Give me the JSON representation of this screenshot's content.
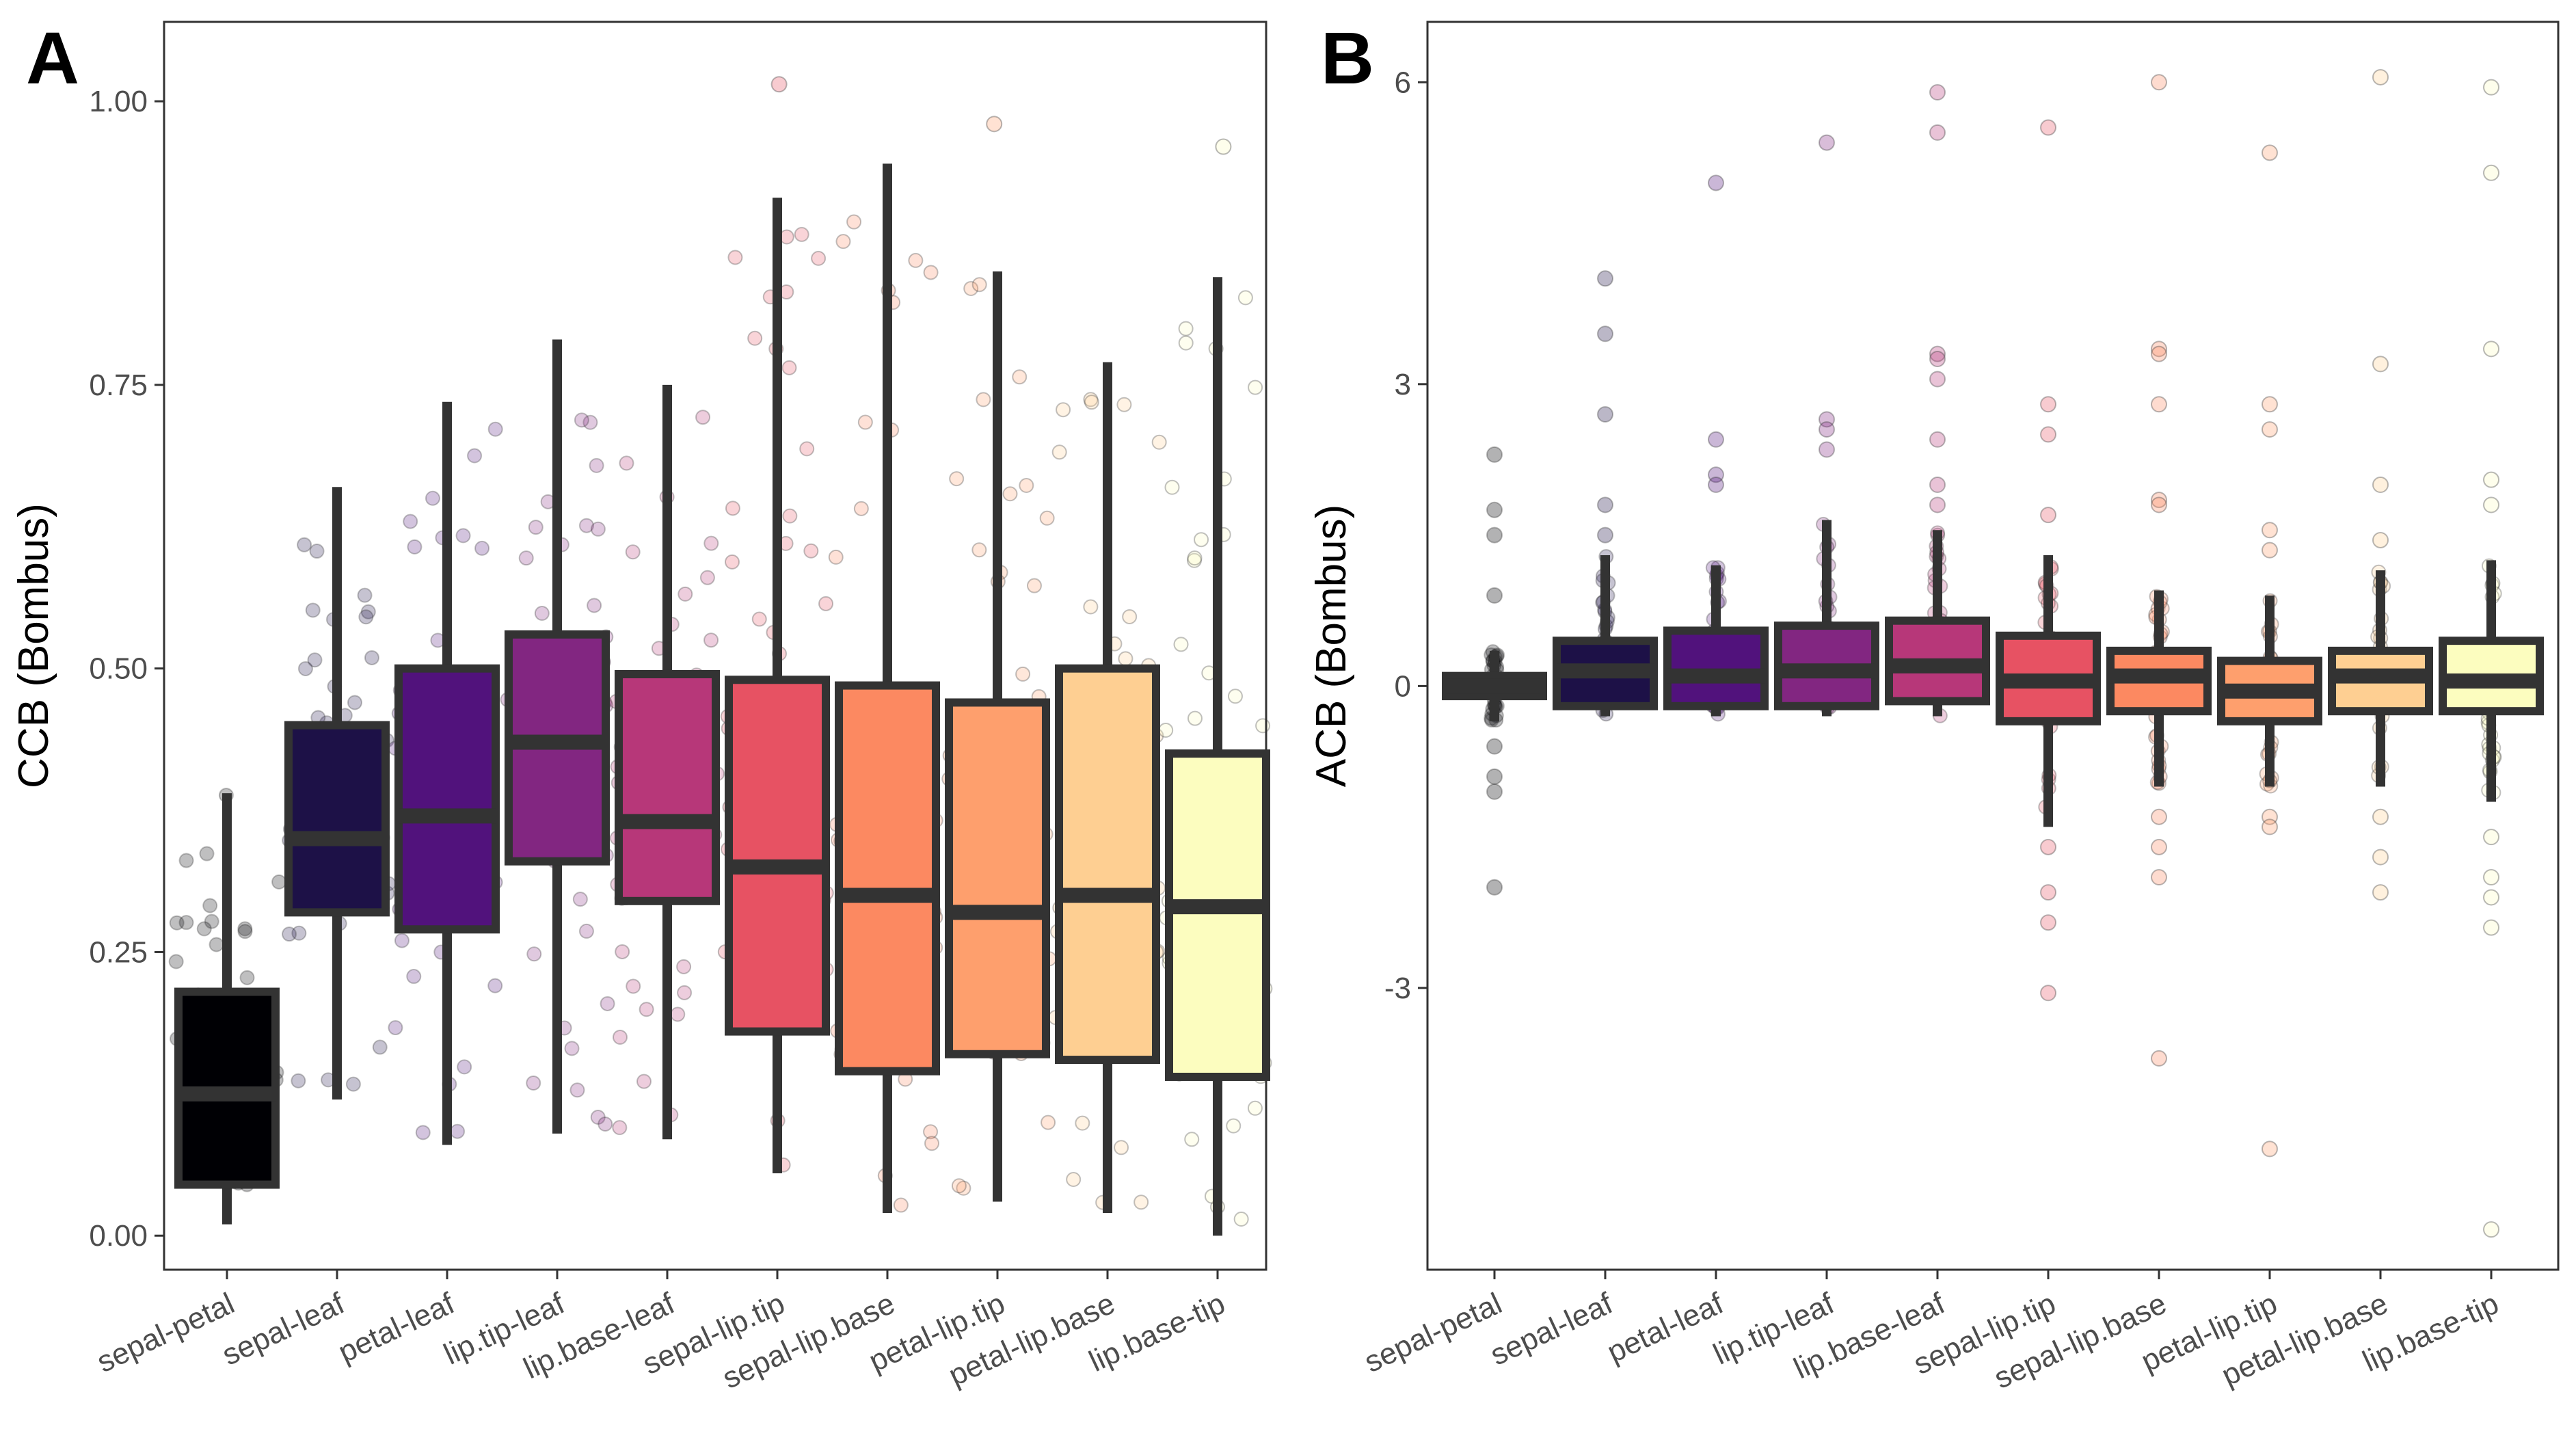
{
  "chart_data": [
    {
      "panel": "A",
      "type": "boxplot",
      "ylabel": "CCB (Bombus)",
      "xlabel": "",
      "ylim": [
        -0.03,
        1.07
      ],
      "yticks": [
        0.0,
        0.25,
        0.5,
        0.75,
        1.0
      ],
      "ytick_labels": [
        "0.00",
        "0.25",
        "0.50",
        "0.75",
        "1.00"
      ],
      "grid": false,
      "categories": [
        "sepal-petal",
        "sepal-leaf",
        "petal-leaf",
        "lip.tip-leaf",
        "lip.base-leaf",
        "sepal-lip.tip",
        "sepal-lip.base",
        "petal-lip.tip",
        "petal-lip.base",
        "lip.base-tip"
      ],
      "boxes": [
        {
          "category": "sepal-petal",
          "whisker_low": 0.01,
          "q1": 0.045,
          "median": 0.125,
          "q3": 0.215,
          "whisker_high": 0.39
        },
        {
          "category": "sepal-leaf",
          "whisker_low": 0.12,
          "q1": 0.285,
          "median": 0.35,
          "q3": 0.45,
          "whisker_high": 0.66
        },
        {
          "category": "petal-leaf",
          "whisker_low": 0.08,
          "q1": 0.27,
          "median": 0.37,
          "q3": 0.5,
          "whisker_high": 0.735
        },
        {
          "category": "lip.tip-leaf",
          "whisker_low": 0.09,
          "q1": 0.33,
          "median": 0.435,
          "q3": 0.53,
          "whisker_high": 0.79
        },
        {
          "category": "lip.base-leaf",
          "whisker_low": 0.085,
          "q1": 0.295,
          "median": 0.365,
          "q3": 0.495,
          "whisker_high": 0.75
        },
        {
          "category": "sepal-lip.tip",
          "whisker_low": 0.055,
          "q1": 0.18,
          "median": 0.325,
          "q3": 0.49,
          "whisker_high": 0.915
        },
        {
          "category": "sepal-lip.base",
          "whisker_low": 0.02,
          "q1": 0.145,
          "median": 0.3,
          "q3": 0.485,
          "whisker_high": 0.945
        },
        {
          "category": "petal-lip.tip",
          "whisker_low": 0.03,
          "q1": 0.16,
          "median": 0.285,
          "q3": 0.47,
          "whisker_high": 0.85
        },
        {
          "category": "petal-lip.base",
          "whisker_low": 0.02,
          "q1": 0.155,
          "median": 0.3,
          "q3": 0.5,
          "whisker_high": 0.77
        },
        {
          "category": "lip.base-tip",
          "whisker_low": 0.0,
          "q1": 0.14,
          "median": 0.29,
          "q3": 0.425,
          "whisker_high": 0.845
        }
      ],
      "outliers": [
        {
          "category": "sepal-lip.tip",
          "value": 1.015
        },
        {
          "category": "petal-lip.tip",
          "value": 0.98
        },
        {
          "category": "lip.base-tip",
          "value": 0.96
        }
      ],
      "fill_colors": [
        "#000004",
        "#1d1147",
        "#51127c",
        "#822681",
        "#b73779",
        "#e75263",
        "#fc8961",
        "#fe9f6d",
        "#fecf92",
        "#fcfdbf"
      ]
    },
    {
      "panel": "B",
      "type": "boxplot",
      "ylabel": "ACB (Bombus)",
      "xlabel": "",
      "ylim": [
        -5.8,
        6.6
      ],
      "yticks": [
        -3,
        0,
        3,
        6
      ],
      "ytick_labels": [
        "-3",
        "0",
        "3",
        "6"
      ],
      "grid": false,
      "categories": [
        "sepal-petal",
        "sepal-leaf",
        "petal-leaf",
        "lip.tip-leaf",
        "lip.base-leaf",
        "sepal-lip.tip",
        "sepal-lip.base",
        "petal-lip.tip",
        "petal-lip.base",
        "lip.base-tip"
      ],
      "boxes": [
        {
          "category": "sepal-petal",
          "whisker_low": -0.35,
          "q1": -0.1,
          "median": 0.0,
          "q3": 0.1,
          "whisker_high": 0.35
        },
        {
          "category": "sepal-leaf",
          "whisker_low": -0.3,
          "q1": -0.2,
          "median": 0.15,
          "q3": 0.45,
          "whisker_high": 1.3
        },
        {
          "category": "petal-leaf",
          "whisker_low": -0.3,
          "q1": -0.2,
          "median": 0.1,
          "q3": 0.55,
          "whisker_high": 1.2
        },
        {
          "category": "lip.tip-leaf",
          "whisker_low": -0.3,
          "q1": -0.2,
          "median": 0.15,
          "q3": 0.6,
          "whisker_high": 1.65
        },
        {
          "category": "lip.base-leaf",
          "whisker_low": -0.3,
          "q1": -0.15,
          "median": 0.2,
          "q3": 0.65,
          "whisker_high": 1.55
        },
        {
          "category": "sepal-lip.tip",
          "whisker_low": -1.4,
          "q1": -0.35,
          "median": 0.05,
          "q3": 0.5,
          "whisker_high": 1.3
        },
        {
          "category": "sepal-lip.base",
          "whisker_low": -1.0,
          "q1": -0.25,
          "median": 0.1,
          "q3": 0.35,
          "whisker_high": 0.95
        },
        {
          "category": "petal-lip.tip",
          "whisker_low": -1.0,
          "q1": -0.35,
          "median": -0.05,
          "q3": 0.25,
          "whisker_high": 0.9
        },
        {
          "category": "petal-lip.base",
          "whisker_low": -1.0,
          "q1": -0.25,
          "median": 0.1,
          "q3": 0.35,
          "whisker_high": 1.15
        },
        {
          "category": "lip.base-tip",
          "whisker_low": -1.15,
          "q1": -0.25,
          "median": 0.05,
          "q3": 0.45,
          "whisker_high": 1.25
        }
      ],
      "outliers": [
        {
          "category": "sepal-petal",
          "value": 2.3
        },
        {
          "category": "sepal-petal",
          "value": 1.75
        },
        {
          "category": "sepal-petal",
          "value": 1.5
        },
        {
          "category": "sepal-petal",
          "value": 0.9
        },
        {
          "category": "sepal-petal",
          "value": -0.6
        },
        {
          "category": "sepal-petal",
          "value": -0.9
        },
        {
          "category": "sepal-petal",
          "value": -1.05
        },
        {
          "category": "sepal-petal",
          "value": -2.0
        },
        {
          "category": "sepal-leaf",
          "value": 4.05
        },
        {
          "category": "sepal-leaf",
          "value": 3.5
        },
        {
          "category": "sepal-leaf",
          "value": 2.7
        },
        {
          "category": "sepal-leaf",
          "value": 1.8
        },
        {
          "category": "sepal-leaf",
          "value": 1.5
        },
        {
          "category": "petal-leaf",
          "value": 5.0
        },
        {
          "category": "petal-leaf",
          "value": 2.45
        },
        {
          "category": "petal-leaf",
          "value": 2.1
        },
        {
          "category": "petal-leaf",
          "value": 2.0
        },
        {
          "category": "lip.tip-leaf",
          "value": 5.4
        },
        {
          "category": "lip.tip-leaf",
          "value": 2.65
        },
        {
          "category": "lip.tip-leaf",
          "value": 2.55
        },
        {
          "category": "lip.tip-leaf",
          "value": 2.35
        },
        {
          "category": "lip.base-leaf",
          "value": 5.9
        },
        {
          "category": "lip.base-leaf",
          "value": 5.5
        },
        {
          "category": "lip.base-leaf",
          "value": 3.3
        },
        {
          "category": "lip.base-leaf",
          "value": 3.25
        },
        {
          "category": "lip.base-leaf",
          "value": 3.05
        },
        {
          "category": "lip.base-leaf",
          "value": 2.45
        },
        {
          "category": "lip.base-leaf",
          "value": 2.0
        },
        {
          "category": "lip.base-leaf",
          "value": 1.8
        },
        {
          "category": "sepal-lip.tip",
          "value": 5.55
        },
        {
          "category": "sepal-lip.tip",
          "value": 2.8
        },
        {
          "category": "sepal-lip.tip",
          "value": 2.5
        },
        {
          "category": "sepal-lip.tip",
          "value": 1.7
        },
        {
          "category": "sepal-lip.tip",
          "value": -1.6
        },
        {
          "category": "sepal-lip.tip",
          "value": -2.05
        },
        {
          "category": "sepal-lip.tip",
          "value": -2.35
        },
        {
          "category": "sepal-lip.tip",
          "value": -3.05
        },
        {
          "category": "sepal-lip.base",
          "value": 6.0
        },
        {
          "category": "sepal-lip.base",
          "value": 3.35
        },
        {
          "category": "sepal-lip.base",
          "value": 3.3
        },
        {
          "category": "sepal-lip.base",
          "value": 2.8
        },
        {
          "category": "sepal-lip.base",
          "value": 1.85
        },
        {
          "category": "sepal-lip.base",
          "value": 1.8
        },
        {
          "category": "sepal-lip.base",
          "value": -1.3
        },
        {
          "category": "sepal-lip.base",
          "value": -1.6
        },
        {
          "category": "sepal-lip.base",
          "value": -1.9
        },
        {
          "category": "sepal-lip.base",
          "value": -3.7
        },
        {
          "category": "petal-lip.tip",
          "value": 5.3
        },
        {
          "category": "petal-lip.tip",
          "value": 2.8
        },
        {
          "category": "petal-lip.tip",
          "value": 2.55
        },
        {
          "category": "petal-lip.tip",
          "value": 1.55
        },
        {
          "category": "petal-lip.tip",
          "value": 1.35
        },
        {
          "category": "petal-lip.tip",
          "value": -1.3
        },
        {
          "category": "petal-lip.tip",
          "value": -1.4
        },
        {
          "category": "petal-lip.tip",
          "value": -4.6
        },
        {
          "category": "petal-lip.base",
          "value": 6.05
        },
        {
          "category": "petal-lip.base",
          "value": 3.2
        },
        {
          "category": "petal-lip.base",
          "value": 2.0
        },
        {
          "category": "petal-lip.base",
          "value": 1.45
        },
        {
          "category": "petal-lip.base",
          "value": -1.3
        },
        {
          "category": "petal-lip.base",
          "value": -1.7
        },
        {
          "category": "petal-lip.base",
          "value": -2.05
        },
        {
          "category": "lip.base-tip",
          "value": 5.95
        },
        {
          "category": "lip.base-tip",
          "value": 5.1
        },
        {
          "category": "lip.base-tip",
          "value": 3.35
        },
        {
          "category": "lip.base-tip",
          "value": 2.05
        },
        {
          "category": "lip.base-tip",
          "value": 1.8
        },
        {
          "category": "lip.base-tip",
          "value": -1.5
        },
        {
          "category": "lip.base-tip",
          "value": -1.9
        },
        {
          "category": "lip.base-tip",
          "value": -2.1
        },
        {
          "category": "lip.base-tip",
          "value": -2.4
        },
        {
          "category": "lip.base-tip",
          "value": -5.4
        }
      ],
      "fill_colors": [
        "#000004",
        "#1d1147",
        "#51127c",
        "#822681",
        "#b73779",
        "#e75263",
        "#fc8961",
        "#fe9f6d",
        "#fecf92",
        "#fcfdbf"
      ]
    }
  ]
}
